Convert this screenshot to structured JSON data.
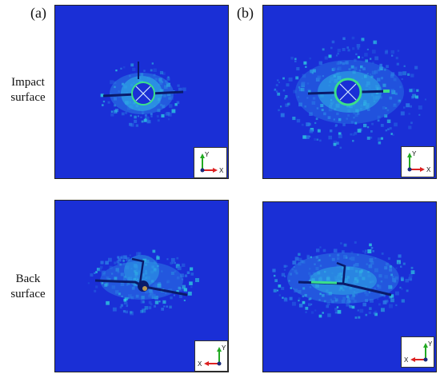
{
  "column_labels": [
    "(a)",
    "(b)"
  ],
  "row_labels": [
    [
      "Impact",
      "surface"
    ],
    [
      "Back",
      "surface"
    ]
  ],
  "triad": {
    "front": {
      "vertical": "Y",
      "horizontal": "X"
    },
    "back": {
      "vertical": "Y",
      "horizontal": "X"
    }
  },
  "colors": {
    "background": "#1a2fd6",
    "damage_light": "#2b7fe6",
    "damage_cyan": "#2fd0e0",
    "damage_green": "#3be08a",
    "crack": "#0a1a6a",
    "axis_y": "#22aa22",
    "axis_x": "#dd2222"
  }
}
